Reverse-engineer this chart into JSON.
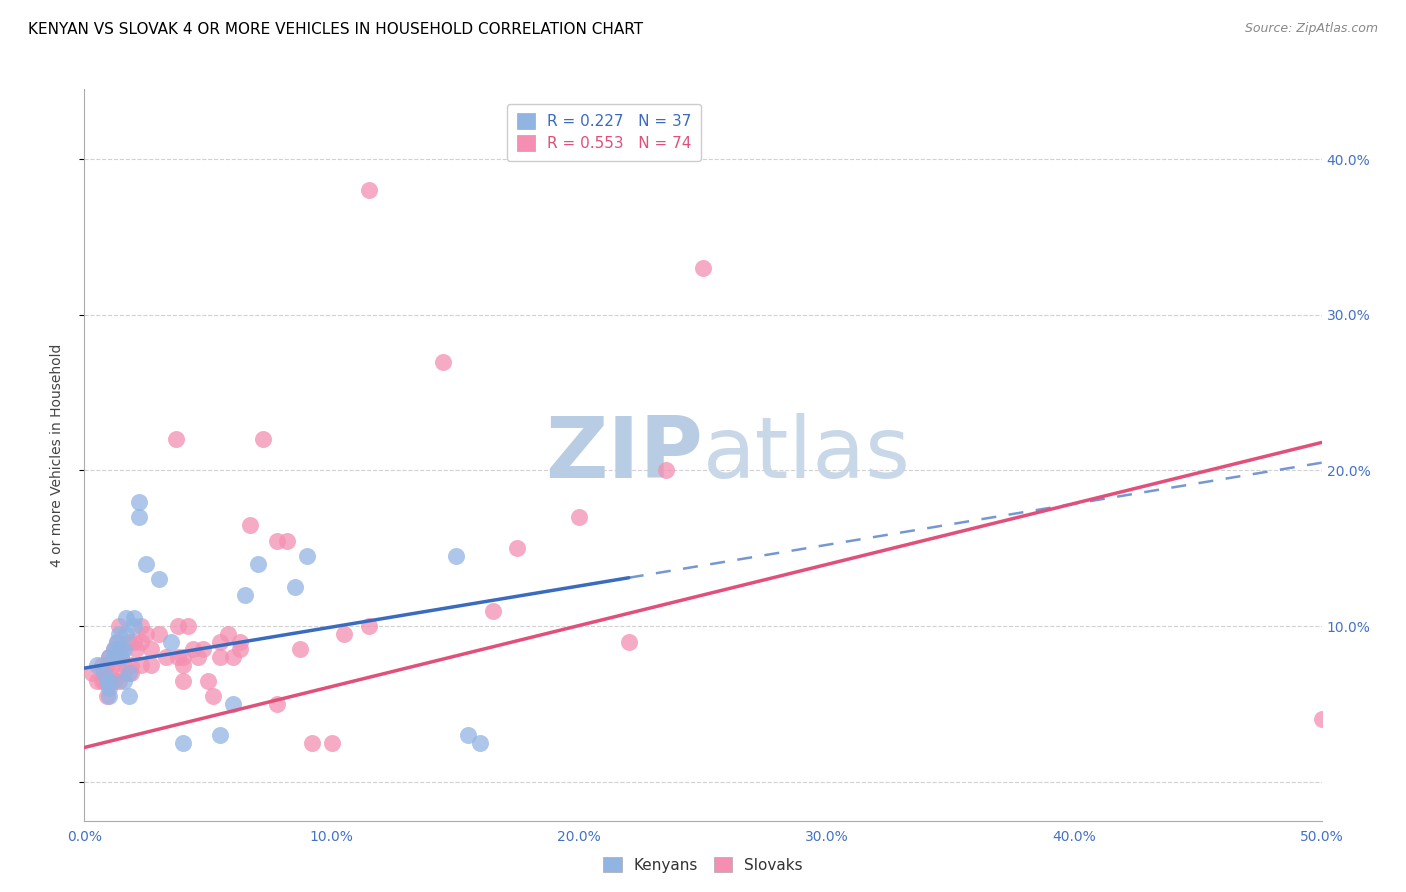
{
  "title": "KENYAN VS SLOVAK 4 OR MORE VEHICLES IN HOUSEHOLD CORRELATION CHART",
  "source": "Source: ZipAtlas.com",
  "xlabel": "",
  "ylabel": "4 or more Vehicles in Household",
  "xlim": [
    0.0,
    0.5
  ],
  "ylim": [
    -0.025,
    0.445
  ],
  "xticks": [
    0.0,
    0.1,
    0.2,
    0.3,
    0.4,
    0.5
  ],
  "yticks": [
    0.0,
    0.1,
    0.2,
    0.3,
    0.4
  ],
  "xtick_labels": [
    "0.0%",
    "10.0%",
    "20.0%",
    "30.0%",
    "40.0%",
    "50.0%"
  ],
  "ytick_labels_right": [
    "",
    "10.0%",
    "20.0%",
    "30.0%",
    "40.0%"
  ],
  "kenyan_color": "#92b4e3",
  "slovak_color": "#f48fb1",
  "kenyan_R": 0.227,
  "kenyan_N": 37,
  "slovak_R": 0.553,
  "slovak_N": 74,
  "kenyan_line_color": "#3a6bbf",
  "slovak_line_color": "#e0507a",
  "background_color": "#ffffff",
  "grid_color": "#cccccc",
  "axis_label_color": "#4472c4",
  "title_color": "#000000",
  "title_fontsize": 11,
  "axis_label_fontsize": 10,
  "tick_fontsize": 10,
  "legend_fontsize": 11,
  "source_fontsize": 9,
  "watermark_zip_color": "#b8cce4",
  "watermark_atlas_color": "#c8d8e8",
  "watermark_fontsize": 62,
  "kenyan_points_x": [
    0.005,
    0.008,
    0.009,
    0.01,
    0.01,
    0.01,
    0.01,
    0.012,
    0.012,
    0.013,
    0.013,
    0.014,
    0.015,
    0.015,
    0.016,
    0.016,
    0.017,
    0.017,
    0.018,
    0.018,
    0.02,
    0.02,
    0.022,
    0.022,
    0.025,
    0.03,
    0.035,
    0.04,
    0.055,
    0.06,
    0.065,
    0.07,
    0.085,
    0.09,
    0.15,
    0.155,
    0.16
  ],
  "kenyan_points_y": [
    0.075,
    0.07,
    0.065,
    0.06,
    0.055,
    0.08,
    0.065,
    0.085,
    0.08,
    0.09,
    0.085,
    0.095,
    0.085,
    0.08,
    0.065,
    0.085,
    0.105,
    0.095,
    0.055,
    0.07,
    0.105,
    0.1,
    0.17,
    0.18,
    0.14,
    0.13,
    0.09,
    0.025,
    0.03,
    0.05,
    0.12,
    0.14,
    0.125,
    0.145,
    0.145,
    0.03,
    0.025
  ],
  "slovak_points_x": [
    0.003,
    0.005,
    0.007,
    0.007,
    0.008,
    0.008,
    0.009,
    0.009,
    0.009,
    0.01,
    0.01,
    0.01,
    0.011,
    0.011,
    0.012,
    0.012,
    0.013,
    0.013,
    0.014,
    0.014,
    0.014,
    0.015,
    0.016,
    0.016,
    0.018,
    0.019,
    0.019,
    0.02,
    0.021,
    0.023,
    0.023,
    0.023,
    0.025,
    0.027,
    0.027,
    0.03,
    0.033,
    0.037,
    0.038,
    0.038,
    0.04,
    0.04,
    0.04,
    0.042,
    0.044,
    0.046,
    0.048,
    0.05,
    0.052,
    0.055,
    0.055,
    0.058,
    0.06,
    0.063,
    0.063,
    0.067,
    0.072,
    0.078,
    0.078,
    0.082,
    0.087,
    0.092,
    0.1,
    0.105,
    0.115,
    0.115,
    0.145,
    0.165,
    0.175,
    0.2,
    0.22,
    0.235,
    0.25,
    0.5
  ],
  "slovak_points_y": [
    0.07,
    0.065,
    0.075,
    0.065,
    0.07,
    0.065,
    0.075,
    0.065,
    0.055,
    0.08,
    0.07,
    0.065,
    0.075,
    0.065,
    0.085,
    0.065,
    0.09,
    0.08,
    0.1,
    0.085,
    0.065,
    0.08,
    0.075,
    0.07,
    0.09,
    0.075,
    0.07,
    0.09,
    0.085,
    0.1,
    0.09,
    0.075,
    0.095,
    0.085,
    0.075,
    0.095,
    0.08,
    0.22,
    0.1,
    0.08,
    0.08,
    0.075,
    0.065,
    0.1,
    0.085,
    0.08,
    0.085,
    0.065,
    0.055,
    0.09,
    0.08,
    0.095,
    0.08,
    0.09,
    0.085,
    0.165,
    0.22,
    0.155,
    0.05,
    0.155,
    0.085,
    0.025,
    0.025,
    0.095,
    0.1,
    0.38,
    0.27,
    0.11,
    0.15,
    0.17,
    0.09,
    0.2,
    0.33,
    0.04
  ],
  "kenyan_line_start_x": 0.0,
  "kenyan_line_end_x": 0.5,
  "kenyan_line_start_y": 0.073,
  "kenyan_line_end_y": 0.205,
  "slovak_line_start_x": 0.0,
  "slovak_line_end_x": 0.5,
  "slovak_line_start_y": 0.022,
  "slovak_line_end_y": 0.218
}
